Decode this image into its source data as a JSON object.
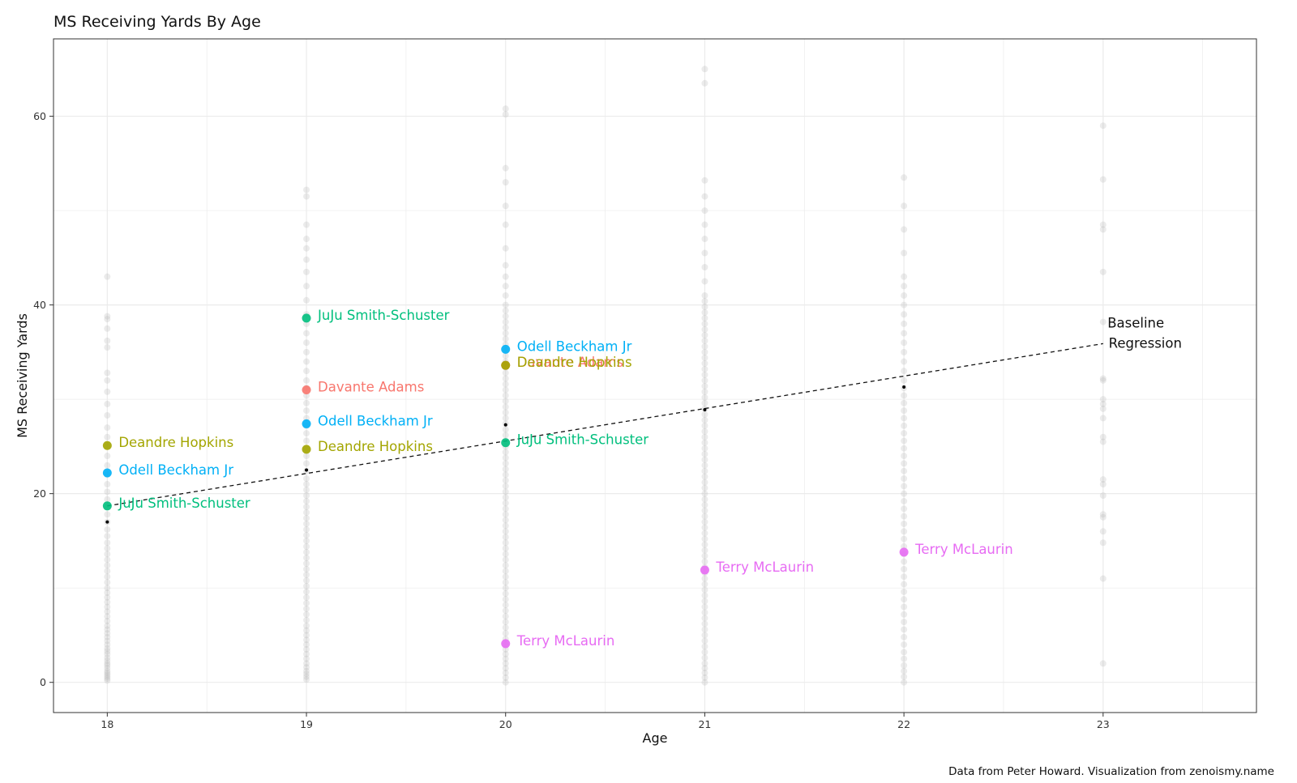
{
  "chart_data": {
    "type": "scatter",
    "title": "MS Receiving Yards By Age",
    "xlabel": "Age",
    "ylabel": "MS Receiving Yards",
    "caption": "Data from Peter Howard. Visualization from zenoismy.name",
    "xlim": [
      17.73,
      23.77
    ],
    "ylim": [
      -3.2,
      68.2
    ],
    "x_ticks": [
      18,
      19,
      20,
      21,
      22,
      23
    ],
    "y_ticks": [
      0,
      20,
      40,
      60
    ],
    "grid": true,
    "legend": "none",
    "background_points": [
      {
        "x": 18,
        "values": [
          0.2,
          0.4,
          0.6,
          0.8,
          1.0,
          1.2,
          1.5,
          1.8,
          2.0,
          2.3,
          2.6,
          3.0,
          3.3,
          3.6,
          4.0,
          4.4,
          4.8,
          5.2,
          5.6,
          6.0,
          6.5,
          7.0,
          7.5,
          8.0,
          8.5,
          9.0,
          9.5,
          10.0,
          10.6,
          11.2,
          11.8,
          12.4,
          13.0,
          13.6,
          14.2,
          14.8,
          15.5,
          16.2,
          17.0,
          17.8,
          18.6,
          19.4,
          20.2,
          21.0,
          22.0,
          23.0,
          24.0,
          25.0,
          26.0,
          27.0,
          28.3,
          29.5,
          30.8,
          32.0,
          32.8,
          35.5,
          36.2,
          37.5,
          38.5,
          38.8,
          43.0
        ]
      },
      {
        "x": 19,
        "values": [
          0.3,
          0.6,
          0.9,
          1.2,
          1.6,
          2.0,
          2.5,
          3.0,
          3.5,
          4.0,
          4.5,
          5.0,
          5.5,
          6.0,
          6.6,
          7.2,
          7.8,
          8.4,
          9.0,
          9.6,
          10.2,
          10.8,
          11.4,
          12.0,
          12.6,
          13.2,
          13.8,
          14.4,
          15.0,
          15.6,
          16.2,
          16.8,
          17.4,
          18.0,
          18.6,
          19.2,
          19.8,
          20.4,
          21.0,
          21.6,
          22.4,
          23.2,
          24.0,
          24.8,
          25.6,
          26.4,
          27.2,
          28.0,
          28.8,
          29.6,
          30.4,
          31.2,
          32.0,
          33.0,
          34.0,
          35.0,
          36.0,
          37.0,
          38.0,
          39.0,
          40.5,
          42.0,
          43.5,
          44.8,
          46.0,
          47.0,
          48.5,
          51.5,
          52.2
        ]
      },
      {
        "x": 20,
        "values": [
          0.0,
          0.5,
          1.0,
          1.5,
          2.0,
          2.5,
          3.0,
          3.5,
          4.0,
          4.6,
          5.2,
          5.8,
          6.4,
          7.0,
          7.6,
          8.2,
          8.8,
          9.4,
          10.0,
          10.6,
          11.2,
          11.8,
          12.4,
          13.0,
          13.6,
          14.2,
          14.8,
          15.4,
          16.0,
          16.6,
          17.2,
          17.8,
          18.4,
          19.0,
          19.6,
          20.2,
          20.8,
          21.4,
          22.0,
          22.6,
          23.2,
          23.8,
          24.4,
          25.0,
          25.6,
          26.2,
          26.8,
          27.4,
          28.0,
          28.6,
          29.2,
          29.8,
          30.4,
          31.0,
          31.6,
          32.2,
          32.8,
          33.4,
          34.0,
          34.6,
          35.2,
          35.8,
          36.4,
          37.0,
          37.6,
          38.2,
          38.8,
          39.4,
          40.0,
          41.0,
          42.0,
          43.0,
          44.2,
          46.0,
          48.5,
          50.5,
          53.0,
          54.5,
          60.2,
          60.8
        ]
      },
      {
        "x": 21,
        "values": [
          0.0,
          0.5,
          1.0,
          1.5,
          2.0,
          2.6,
          3.2,
          3.8,
          4.4,
          5.0,
          5.6,
          6.2,
          6.8,
          7.4,
          8.0,
          8.6,
          9.2,
          9.8,
          10.4,
          11.0,
          11.6,
          12.2,
          12.8,
          13.4,
          14.0,
          14.6,
          15.2,
          15.8,
          16.4,
          17.0,
          17.6,
          18.2,
          18.8,
          19.4,
          20.0,
          20.6,
          21.2,
          21.8,
          22.4,
          23.0,
          23.6,
          24.2,
          24.8,
          25.4,
          26.0,
          26.6,
          27.2,
          27.8,
          28.4,
          29.0,
          29.6,
          30.2,
          30.8,
          31.4,
          32.0,
          32.6,
          33.2,
          33.8,
          34.4,
          35.0,
          35.6,
          36.2,
          36.8,
          37.4,
          38.0,
          38.6,
          39.2,
          39.8,
          40.4,
          41.0,
          42.5,
          44.0,
          45.5,
          47.0,
          48.5,
          50.0,
          51.5,
          53.2,
          63.5,
          65.0
        ]
      },
      {
        "x": 22,
        "values": [
          0.0,
          0.6,
          1.2,
          1.8,
          2.5,
          3.2,
          4.0,
          4.8,
          5.6,
          6.4,
          7.2,
          8.0,
          8.8,
          9.6,
          10.4,
          11.2,
          12.0,
          12.8,
          13.6,
          14.4,
          15.2,
          16.0,
          16.8,
          17.6,
          18.4,
          19.2,
          20.0,
          20.8,
          21.6,
          22.4,
          23.2,
          24.0,
          24.8,
          25.6,
          26.4,
          27.2,
          28.0,
          28.8,
          29.6,
          30.4,
          31.2,
          32.0,
          33.0,
          34.0,
          35.0,
          36.0,
          37.0,
          38.0,
          39.0,
          40.0,
          41.0,
          42.0,
          43.0,
          45.5,
          48.0,
          50.5,
          53.5
        ]
      },
      {
        "x": 23,
        "values": [
          2.0,
          11.0,
          14.8,
          16.0,
          17.5,
          17.8,
          19.8,
          21.0,
          21.5,
          25.5,
          26.0,
          28.0,
          29.0,
          29.5,
          30.0,
          32.0,
          32.2,
          38.2,
          43.5,
          48.0,
          48.5,
          53.3,
          59.0
        ]
      }
    ],
    "median_points": [
      {
        "x": 18,
        "y": 17.0
      },
      {
        "x": 19,
        "y": 22.5
      },
      {
        "x": 20,
        "y": 27.3
      },
      {
        "x": 21,
        "y": 28.9
      },
      {
        "x": 22,
        "y": 31.3
      }
    ],
    "regression": {
      "x": [
        18,
        23
      ],
      "y": [
        18.7,
        35.9
      ],
      "label_lines": [
        "Baseline",
        "Regression"
      ]
    },
    "series": [
      {
        "name": "Davante Adams",
        "color": "#F8766D",
        "points": [
          {
            "x": 19,
            "y": 31.0
          },
          {
            "x": 20,
            "y": 33.6
          }
        ]
      },
      {
        "name": "Deandre Hopkins",
        "color": "#A3A500",
        "points": [
          {
            "x": 18,
            "y": 25.1
          },
          {
            "x": 19,
            "y": 24.7
          },
          {
            "x": 20,
            "y": 33.6
          }
        ]
      },
      {
        "name": "JuJu Smith-Schuster",
        "color": "#00BF7D",
        "points": [
          {
            "x": 18,
            "y": 18.7
          },
          {
            "x": 19,
            "y": 38.6
          },
          {
            "x": 20,
            "y": 25.4
          }
        ]
      },
      {
        "name": "Odell Beckham Jr",
        "color": "#00B0F6",
        "points": [
          {
            "x": 18,
            "y": 22.2
          },
          {
            "x": 19,
            "y": 27.4
          },
          {
            "x": 20,
            "y": 35.3
          }
        ]
      },
      {
        "name": "Terry McLaurin",
        "color": "#E76BF3",
        "points": [
          {
            "x": 20,
            "y": 4.1
          },
          {
            "x": 21,
            "y": 11.9
          },
          {
            "x": 22,
            "y": 13.8
          }
        ]
      }
    ]
  }
}
